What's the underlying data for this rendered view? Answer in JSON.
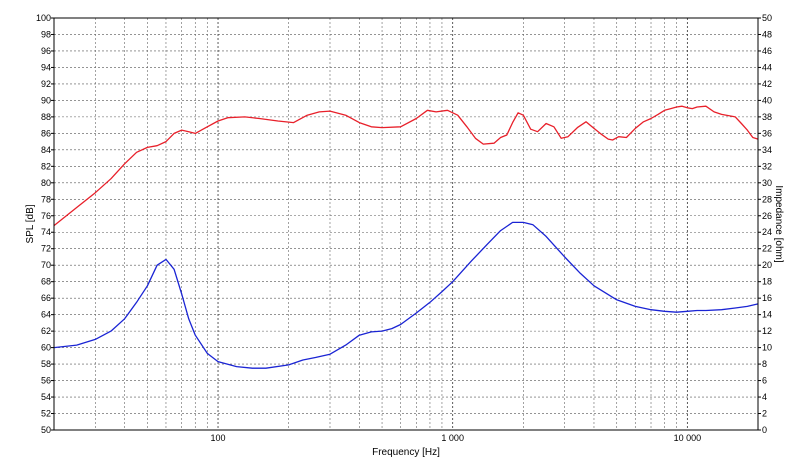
{
  "chart_data": {
    "type": "line",
    "xlabel": "Frequency [Hz]",
    "ylabel": "SPL [dB]",
    "y2label": "Impedance [ohm]",
    "x_scale": "log",
    "xlim": [
      20,
      20000
    ],
    "ylim": [
      50,
      100
    ],
    "y2lim": [
      0,
      50
    ],
    "grid": true,
    "x_tick_labels": [
      {
        "value": 100,
        "label": "100"
      },
      {
        "value": 1000,
        "label": "1 000"
      },
      {
        "value": 10000,
        "label": "10 000"
      }
    ],
    "y_ticks": [
      50,
      52,
      54,
      56,
      58,
      60,
      62,
      64,
      66,
      68,
      70,
      72,
      74,
      76,
      78,
      80,
      82,
      84,
      86,
      88,
      90,
      92,
      94,
      96,
      98,
      100
    ],
    "y2_ticks": [
      0,
      2,
      4,
      6,
      8,
      10,
      12,
      14,
      16,
      18,
      20,
      22,
      24,
      26,
      28,
      30,
      32,
      34,
      36,
      38,
      40,
      42,
      44,
      46,
      48,
      50
    ],
    "series": [
      {
        "axis": "left",
        "color": "#e8202a",
        "points": [
          [
            20,
            74.8
          ],
          [
            25,
            77.0
          ],
          [
            30,
            78.8
          ],
          [
            35,
            80.5
          ],
          [
            40,
            82.3
          ],
          [
            45,
            83.7
          ],
          [
            50,
            84.3
          ],
          [
            55,
            84.5
          ],
          [
            60,
            85.0
          ],
          [
            65,
            86.0
          ],
          [
            70,
            86.4
          ],
          [
            75,
            86.2
          ],
          [
            80,
            86.0
          ],
          [
            90,
            86.8
          ],
          [
            100,
            87.5
          ],
          [
            110,
            87.9
          ],
          [
            130,
            88.0
          ],
          [
            150,
            87.8
          ],
          [
            180,
            87.5
          ],
          [
            210,
            87.3
          ],
          [
            240,
            88.2
          ],
          [
            270,
            88.6
          ],
          [
            300,
            88.7
          ],
          [
            350,
            88.2
          ],
          [
            400,
            87.3
          ],
          [
            450,
            86.8
          ],
          [
            500,
            86.7
          ],
          [
            600,
            86.8
          ],
          [
            700,
            87.8
          ],
          [
            780,
            88.8
          ],
          [
            850,
            88.6
          ],
          [
            950,
            88.8
          ],
          [
            1050,
            88.2
          ],
          [
            1150,
            86.8
          ],
          [
            1250,
            85.4
          ],
          [
            1350,
            84.7
          ],
          [
            1500,
            84.8
          ],
          [
            1600,
            85.5
          ],
          [
            1700,
            85.8
          ],
          [
            1800,
            87.3
          ],
          [
            1900,
            88.5
          ],
          [
            2000,
            88.2
          ],
          [
            2150,
            86.5
          ],
          [
            2300,
            86.2
          ],
          [
            2500,
            87.2
          ],
          [
            2700,
            86.8
          ],
          [
            2900,
            85.4
          ],
          [
            3100,
            85.6
          ],
          [
            3400,
            86.7
          ],
          [
            3700,
            87.4
          ],
          [
            4000,
            86.6
          ],
          [
            4300,
            85.9
          ],
          [
            4600,
            85.3
          ],
          [
            4800,
            85.2
          ],
          [
            5100,
            85.6
          ],
          [
            5500,
            85.5
          ],
          [
            6000,
            86.6
          ],
          [
            6500,
            87.4
          ],
          [
            7000,
            87.8
          ],
          [
            7500,
            88.3
          ],
          [
            8000,
            88.8
          ],
          [
            8500,
            89.0
          ],
          [
            9000,
            89.2
          ],
          [
            9500,
            89.3
          ],
          [
            10000,
            89.1
          ],
          [
            10500,
            89.0
          ],
          [
            11000,
            89.2
          ],
          [
            12000,
            89.3
          ],
          [
            13000,
            88.6
          ],
          [
            14000,
            88.3
          ],
          [
            16000,
            88.0
          ],
          [
            17000,
            87.2
          ],
          [
            18000,
            86.4
          ],
          [
            19000,
            85.5
          ],
          [
            20000,
            85.3
          ]
        ]
      },
      {
        "axis": "right",
        "color": "#1a24d4",
        "points": [
          [
            20,
            10.0
          ],
          [
            25,
            10.3
          ],
          [
            30,
            11.0
          ],
          [
            35,
            12.0
          ],
          [
            40,
            13.5
          ],
          [
            45,
            15.5
          ],
          [
            50,
            17.5
          ],
          [
            55,
            20.0
          ],
          [
            60,
            20.7
          ],
          [
            65,
            19.5
          ],
          [
            70,
            16.5
          ],
          [
            75,
            13.5
          ],
          [
            80,
            11.5
          ],
          [
            90,
            9.3
          ],
          [
            100,
            8.3
          ],
          [
            120,
            7.7
          ],
          [
            140,
            7.5
          ],
          [
            160,
            7.5
          ],
          [
            200,
            7.9
          ],
          [
            230,
            8.5
          ],
          [
            260,
            8.8
          ],
          [
            300,
            9.2
          ],
          [
            350,
            10.3
          ],
          [
            400,
            11.5
          ],
          [
            450,
            11.9
          ],
          [
            500,
            12.0
          ],
          [
            550,
            12.3
          ],
          [
            600,
            12.8
          ],
          [
            700,
            14.2
          ],
          [
            800,
            15.5
          ],
          [
            900,
            16.8
          ],
          [
            1000,
            18.0
          ],
          [
            1200,
            20.5
          ],
          [
            1400,
            22.5
          ],
          [
            1600,
            24.2
          ],
          [
            1800,
            25.2
          ],
          [
            2000,
            25.2
          ],
          [
            2200,
            24.9
          ],
          [
            2500,
            23.5
          ],
          [
            3000,
            21.0
          ],
          [
            3500,
            19.0
          ],
          [
            4000,
            17.5
          ],
          [
            5000,
            15.8
          ],
          [
            6000,
            15.0
          ],
          [
            7000,
            14.6
          ],
          [
            8000,
            14.4
          ],
          [
            9000,
            14.3
          ],
          [
            10000,
            14.4
          ],
          [
            11000,
            14.5
          ],
          [
            12000,
            14.5
          ],
          [
            14000,
            14.6
          ],
          [
            16000,
            14.8
          ],
          [
            18000,
            15.0
          ],
          [
            20000,
            15.3
          ]
        ]
      }
    ]
  }
}
